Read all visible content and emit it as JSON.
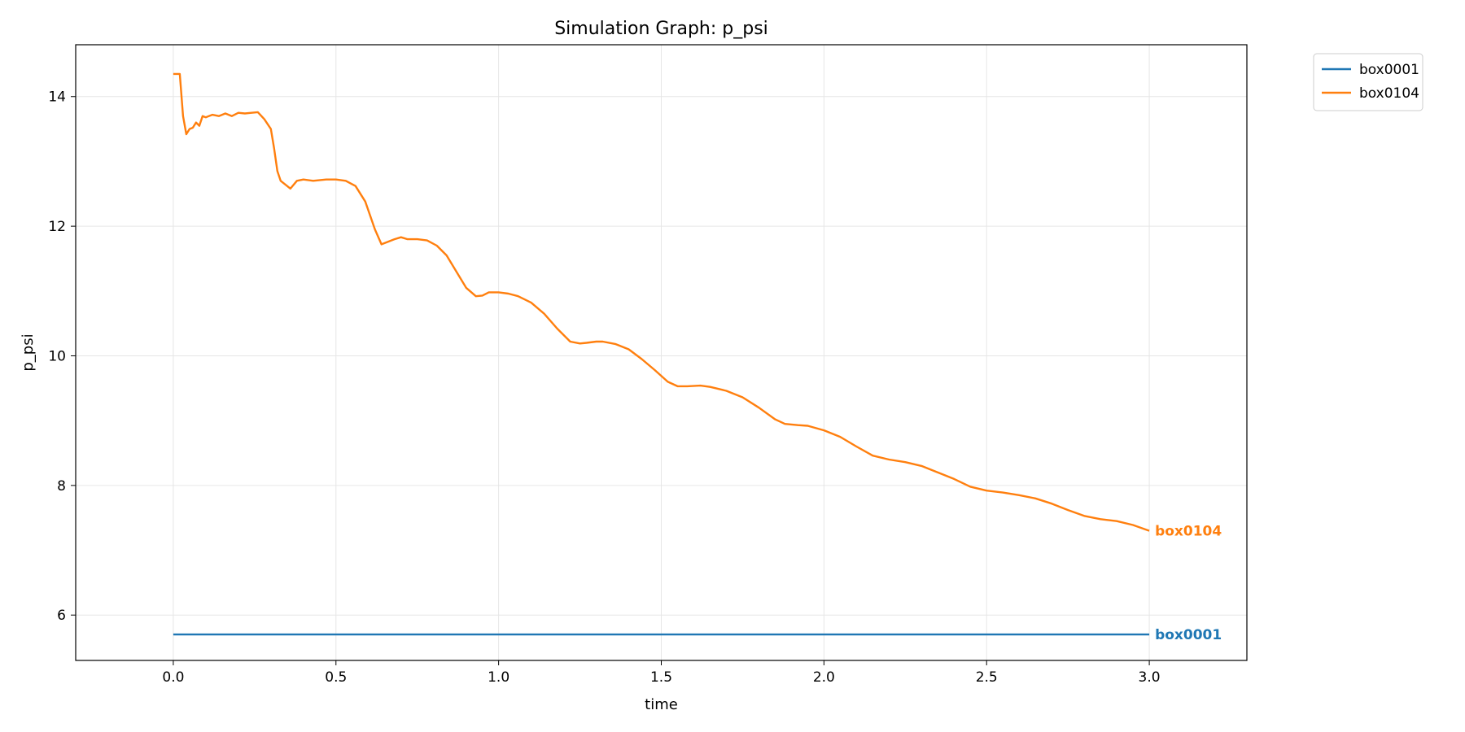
{
  "chart_data": {
    "type": "line",
    "title": "Simulation Graph: p_psi",
    "xlabel": "time",
    "ylabel": "p_psi",
    "xlim": [
      -0.3,
      3.3
    ],
    "ylim": [
      5.3,
      14.8
    ],
    "xticks": [
      0.0,
      0.5,
      1.0,
      1.5,
      2.0,
      2.5,
      3.0
    ],
    "xtick_labels": [
      "0.0",
      "0.5",
      "1.0",
      "1.5",
      "2.0",
      "2.5",
      "3.0"
    ],
    "yticks": [
      6,
      8,
      10,
      12,
      14
    ],
    "ytick_labels": [
      "6",
      "8",
      "10",
      "12",
      "14"
    ],
    "grid": true,
    "legend_position": "outside-top-right",
    "series": [
      {
        "name": "box0001",
        "color": "#1f77b4",
        "end_label": "box0001",
        "x": [
          0.0,
          0.05,
          0.1,
          0.5,
          1.0,
          1.5,
          2.0,
          2.5,
          3.0
        ],
        "y": [
          5.7,
          5.7,
          5.7,
          5.7,
          5.7,
          5.7,
          5.7,
          5.7,
          5.7
        ]
      },
      {
        "name": "box0104",
        "color": "#ff7f0e",
        "end_label": "box0104",
        "x": [
          0.0,
          0.02,
          0.03,
          0.04,
          0.05,
          0.06,
          0.07,
          0.08,
          0.09,
          0.1,
          0.12,
          0.14,
          0.16,
          0.18,
          0.2,
          0.22,
          0.24,
          0.26,
          0.28,
          0.3,
          0.31,
          0.32,
          0.33,
          0.35,
          0.36,
          0.38,
          0.4,
          0.43,
          0.47,
          0.5,
          0.53,
          0.56,
          0.59,
          0.62,
          0.64,
          0.66,
          0.68,
          0.7,
          0.72,
          0.75,
          0.78,
          0.81,
          0.84,
          0.87,
          0.9,
          0.93,
          0.95,
          0.97,
          1.0,
          1.03,
          1.06,
          1.1,
          1.14,
          1.18,
          1.22,
          1.25,
          1.27,
          1.3,
          1.32,
          1.36,
          1.4,
          1.44,
          1.48,
          1.52,
          1.55,
          1.58,
          1.62,
          1.65,
          1.7,
          1.75,
          1.8,
          1.85,
          1.88,
          1.92,
          1.95,
          2.0,
          2.05,
          2.1,
          2.15,
          2.2,
          2.25,
          2.3,
          2.35,
          2.4,
          2.45,
          2.5,
          2.55,
          2.6,
          2.65,
          2.7,
          2.75,
          2.8,
          2.85,
          2.9,
          2.95,
          3.0
        ],
        "y": [
          14.35,
          14.35,
          13.7,
          13.42,
          13.5,
          13.52,
          13.6,
          13.55,
          13.7,
          13.68,
          13.72,
          13.7,
          13.74,
          13.7,
          13.75,
          13.74,
          13.75,
          13.76,
          13.65,
          13.5,
          13.2,
          12.85,
          12.7,
          12.62,
          12.58,
          12.7,
          12.72,
          12.7,
          12.72,
          12.72,
          12.7,
          12.62,
          12.38,
          11.95,
          11.72,
          11.76,
          11.8,
          11.83,
          11.8,
          11.8,
          11.78,
          11.7,
          11.55,
          11.3,
          11.05,
          10.92,
          10.93,
          10.98,
          10.98,
          10.96,
          10.92,
          10.82,
          10.65,
          10.42,
          10.22,
          10.19,
          10.2,
          10.22,
          10.22,
          10.18,
          10.1,
          9.95,
          9.78,
          9.6,
          9.53,
          9.53,
          9.54,
          9.52,
          9.46,
          9.36,
          9.2,
          9.02,
          8.95,
          8.93,
          8.92,
          8.85,
          8.75,
          8.6,
          8.46,
          8.4,
          8.36,
          8.3,
          8.2,
          8.1,
          7.98,
          7.92,
          7.89,
          7.85,
          7.8,
          7.72,
          7.62,
          7.53,
          7.48,
          7.45,
          7.39,
          7.3
        ]
      }
    ]
  }
}
